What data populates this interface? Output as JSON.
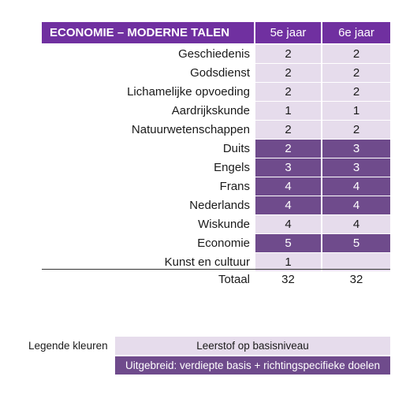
{
  "header": {
    "title": "ECONOMIE – MODERNE TALEN",
    "col1": "5e jaar",
    "col2": "6e jaar"
  },
  "rows": [
    {
      "subject": "Geschiedenis",
      "y5": "2",
      "y6": "2",
      "level5": "basis",
      "level6": "basis"
    },
    {
      "subject": "Godsdienst",
      "y5": "2",
      "y6": "2",
      "level5": "basis",
      "level6": "basis"
    },
    {
      "subject": "Lichamelijke opvoeding",
      "y5": "2",
      "y6": "2",
      "level5": "basis",
      "level6": "basis"
    },
    {
      "subject": "Aardrijkskunde",
      "y5": "1",
      "y6": "1",
      "level5": "basis",
      "level6": "basis"
    },
    {
      "subject": "Natuurwetenschappen",
      "y5": "2",
      "y6": "2",
      "level5": "basis",
      "level6": "basis"
    },
    {
      "subject": "Duits",
      "y5": "2",
      "y6": "3",
      "level5": "uitgebreid",
      "level6": "uitgebreid"
    },
    {
      "subject": "Engels",
      "y5": "3",
      "y6": "3",
      "level5": "uitgebreid",
      "level6": "uitgebreid"
    },
    {
      "subject": "Frans",
      "y5": "4",
      "y6": "4",
      "level5": "uitgebreid",
      "level6": "uitgebreid"
    },
    {
      "subject": "Nederlands",
      "y5": "4",
      "y6": "4",
      "level5": "uitgebreid",
      "level6": "uitgebreid"
    },
    {
      "subject": "Wiskunde",
      "y5": "4",
      "y6": "4",
      "level5": "basis",
      "level6": "basis"
    },
    {
      "subject": "Economie",
      "y5": "5",
      "y6": "5",
      "level5": "uitgebreid",
      "level6": "uitgebreid"
    },
    {
      "subject": "Kunst en cultuur",
      "y5": "1",
      "y6": "",
      "level5": "basis",
      "level6": "basis"
    }
  ],
  "total": {
    "label": "Totaal",
    "y5": "32",
    "y6": "32"
  },
  "legend": {
    "title": "Legende kleuren",
    "basic": "Leerstof op basisniveau",
    "extended": "Uitgebreid: verdiepte basis + richtingspecifieke doelen"
  },
  "colors": {
    "header": "#7030a0",
    "basic": "#e6dcec",
    "extended": "#6f4b8c"
  }
}
